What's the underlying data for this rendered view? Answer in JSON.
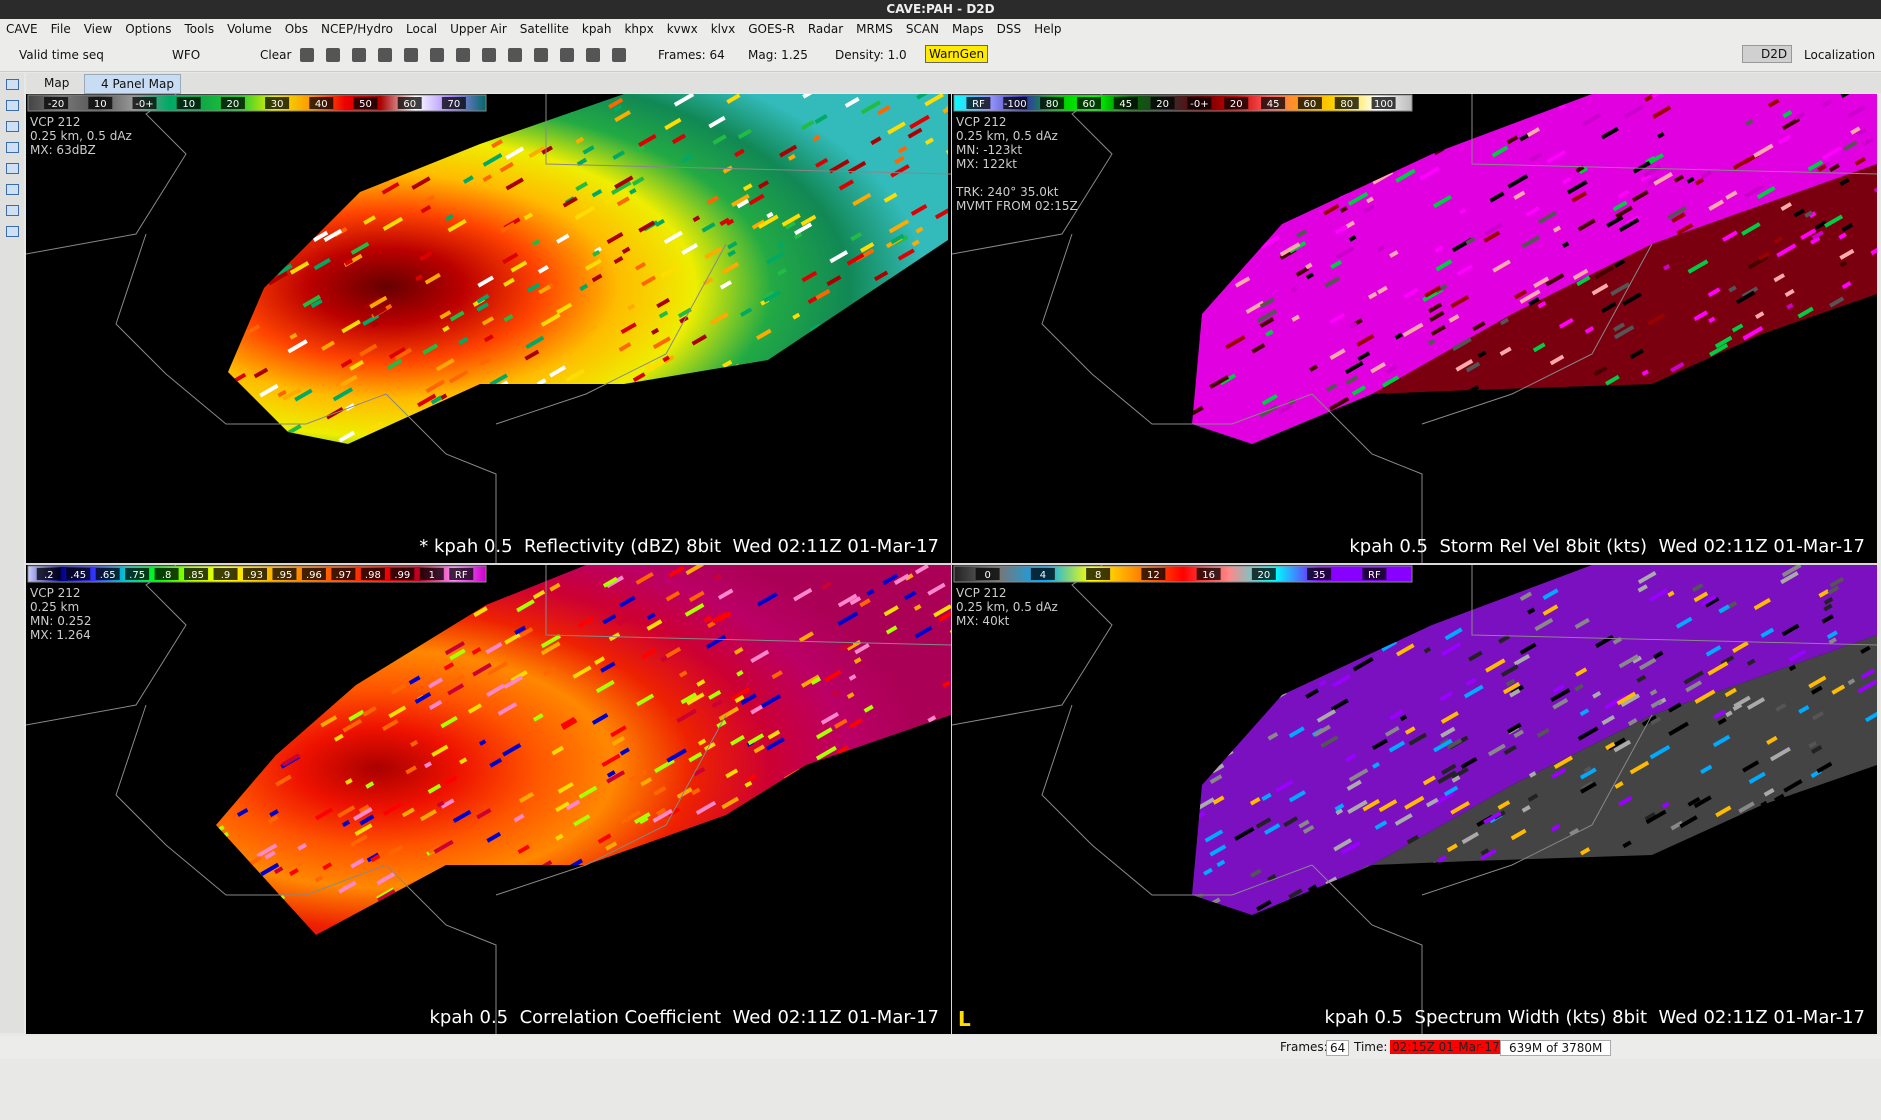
{
  "window": {
    "title": "CAVE:PAH - D2D"
  },
  "menu": [
    "CAVE",
    "File",
    "View",
    "Options",
    "Tools",
    "Volume",
    "Obs",
    "NCEP/Hydro",
    "Local",
    "Upper Air",
    "Satellite",
    "kpah",
    "khpx",
    "kvwx",
    "klvx",
    "GOES-R",
    "Radar",
    "MRMS",
    "SCAN",
    "Maps",
    "DSS",
    "Help"
  ],
  "toolbar": {
    "time_mode": "Valid time seq",
    "scale": "WFO",
    "clear": "Clear",
    "frames": "Frames: 64",
    "mag": "Mag: 1.25",
    "density": "Density: 1.0",
    "warngen": "WarnGen",
    "perspective": "D2D",
    "localization": "Localization"
  },
  "tabs": [
    "Map",
    "4 Panel Map"
  ],
  "panels": [
    {
      "colorbar": [
        "-20",
        "10",
        "-0+",
        "10",
        "20",
        "30",
        "40",
        "50",
        "60",
        "70"
      ],
      "info": [
        "VCP 212",
        "0.25 km, 0.5 dAz",
        "MX: 63dBZ"
      ],
      "legend": "* kpah 0.5  Reflectivity (dBZ) 8bit  Wed 02:11Z 01-Mar-17"
    },
    {
      "colorbar": [
        "RF",
        "-100",
        "80",
        "60",
        "45",
        "20",
        "-0+",
        "20",
        "45",
        "60",
        "80",
        "100"
      ],
      "info": [
        "VCP 212",
        "0.25 km, 0.5 dAz",
        "MN: -123kt",
        "MX: 122kt"
      ],
      "track": [
        "TRK: 240° 35.0kt",
        "MVMT FROM 02:15Z"
      ],
      "legend": "kpah 0.5  Storm Rel Vel 8bit (kts)  Wed 02:11Z 01-Mar-17"
    },
    {
      "colorbar": [
        ".2",
        ".45",
        ".65",
        ".75",
        ".8",
        ".85",
        ".9",
        ".93",
        ".95",
        ".96",
        ".97",
        ".98",
        ".99",
        "1",
        "RF"
      ],
      "info": [
        "VCP 212",
        "0.25 km",
        "MN: 0.252",
        "MX: 1.264"
      ],
      "legend": "kpah 0.5  Correlation Coefficient  Wed 02:11Z 01-Mar-17"
    },
    {
      "colorbar": [
        "0",
        "4",
        "8",
        "12",
        "16",
        "20",
        "35",
        "RF"
      ],
      "info": [
        "VCP 212",
        "0.25 km, 0.5 dAz",
        "MX: 40kt"
      ],
      "marker": "L",
      "legend": "kpah 0.5  Spectrum Width (kts) 8bit  Wed 02:11Z 01-Mar-17"
    }
  ],
  "status": {
    "frames_label": "Frames:",
    "frames": "64",
    "time_label": "Time:",
    "time": "02:15Z 01-Mar-17",
    "memory": "639M of 3780M"
  }
}
